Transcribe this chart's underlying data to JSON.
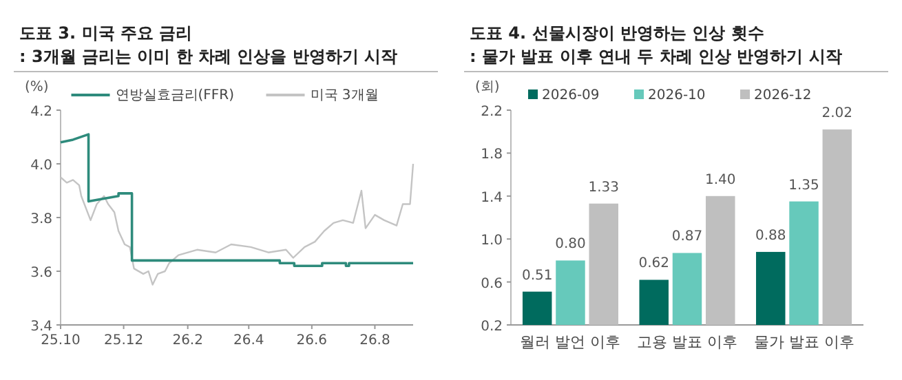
{
  "chart_data": [
    {
      "type": "line",
      "title": "도표 3. 미국 주요 금리",
      "subtitle": ": 3개월 금리는 이미 한 차례 인상을 반영하기 시작",
      "ylabel": "(%)",
      "xlim": [
        "2025-10-01",
        "2026-09-07"
      ],
      "xticks": [
        {
          "value": "2025-10",
          "label": "25.10"
        },
        {
          "value": "2025-12",
          "label": "25.12"
        },
        {
          "value": "2026-02",
          "label": "26.2"
        },
        {
          "value": "2026-04",
          "label": "26.4"
        },
        {
          "value": "2026-06",
          "label": "26.6"
        },
        {
          "value": "2026-08",
          "label": "26.8"
        }
      ],
      "ylim": [
        3.4,
        4.2
      ],
      "yticks": [
        3.4,
        3.6,
        3.8,
        {
          "value": 4,
          "label": "4.0"
        },
        4.2
      ],
      "grid": false,
      "legend": "top",
      "line_style": "solid",
      "marker": "none",
      "series": [
        {
          "name": "연방실효금리(FFR)",
          "color": "#2e8b7c",
          "x": [
            "2025-10-01",
            "2025-10-13",
            "2025-10-28",
            "2025-10-28",
            "2025-11-26",
            "2025-11-26",
            "2025-12-09",
            "2025-12-09",
            "2026-05-01",
            "2026-05-01",
            "2026-05-15",
            "2026-05-15",
            "2026-06-11",
            "2026-06-11",
            "2026-07-04",
            "2026-07-04",
            "2026-07-07",
            "2026-07-07",
            "2026-09-07"
          ],
          "values": [
            4.08,
            4.09,
            4.11,
            3.86,
            3.88,
            3.89,
            3.89,
            3.64,
            3.64,
            3.63,
            3.63,
            3.62,
            3.62,
            3.63,
            3.63,
            3.62,
            3.62,
            3.63,
            3.63
          ]
        },
        {
          "name": "미국 3개월",
          "color": "#c4c4c4",
          "x": [
            "2025-10-01",
            "2025-10-07",
            "2025-10-13",
            "2025-10-19",
            "2025-10-21",
            "2025-10-30",
            "2025-11-05",
            "2025-11-12",
            "2025-11-16",
            "2025-11-22",
            "2025-11-26",
            "2025-12-02",
            "2025-12-07",
            "2025-12-11",
            "2025-12-20",
            "2025-12-25",
            "2025-12-29",
            "2026-01-03",
            "2026-01-10",
            "2026-01-14",
            "2026-01-23",
            "2026-02-10",
            "2026-02-28",
            "2026-03-15",
            "2026-04-03",
            "2026-04-20",
            "2026-05-07",
            "2026-05-14",
            "2026-05-25",
            "2026-06-04",
            "2026-06-13",
            "2026-06-22",
            "2026-07-01",
            "2026-07-11",
            "2026-07-19",
            "2026-07-23",
            "2026-08-01",
            "2026-08-10",
            "2026-08-22",
            "2026-08-28",
            "2026-09-04",
            "2026-09-07"
          ],
          "values": [
            3.95,
            3.93,
            3.94,
            3.92,
            3.88,
            3.79,
            3.85,
            3.88,
            3.85,
            3.82,
            3.75,
            3.7,
            3.69,
            3.61,
            3.59,
            3.6,
            3.55,
            3.59,
            3.6,
            3.63,
            3.66,
            3.68,
            3.67,
            3.7,
            3.69,
            3.67,
            3.68,
            3.65,
            3.69,
            3.71,
            3.75,
            3.78,
            3.79,
            3.78,
            3.9,
            3.76,
            3.81,
            3.79,
            3.77,
            3.85,
            3.85,
            4.0
          ]
        }
      ]
    },
    {
      "type": "bar",
      "title": "도표 4. 선물시장이 반영하는 인상 횟수",
      "subtitle": ": 물가 발표 이후 연내 두 차례 인상 반영하기 시작",
      "ylabel": "(회)",
      "categories": [
        "월러 발언 이후",
        "고용 발표 이후",
        "물가 발표 이후"
      ],
      "ylim": [
        0.2,
        2.2
      ],
      "yticks": [
        0.2,
        0.6,
        {
          "value": 1,
          "label": "1.0"
        },
        1.4,
        1.8,
        2.2
      ],
      "grid": false,
      "legend": "top",
      "series": [
        {
          "name": "2026-09",
          "color": "#006b5e",
          "values": [
            0.51,
            0.62,
            0.88
          ],
          "value_labels": [
            "0.51",
            "0.62",
            "0.88"
          ]
        },
        {
          "name": "2026-10",
          "color": "#66c9bb",
          "values": [
            0.8,
            0.87,
            1.35
          ],
          "value_labels": [
            "0.80",
            "0.87",
            "1.35"
          ]
        },
        {
          "name": "2026-12",
          "color": "#bfbfbf",
          "values": [
            1.33,
            1.4,
            2.02
          ],
          "value_labels": [
            "1.33",
            "1.40",
            "2.02"
          ]
        }
      ]
    }
  ]
}
